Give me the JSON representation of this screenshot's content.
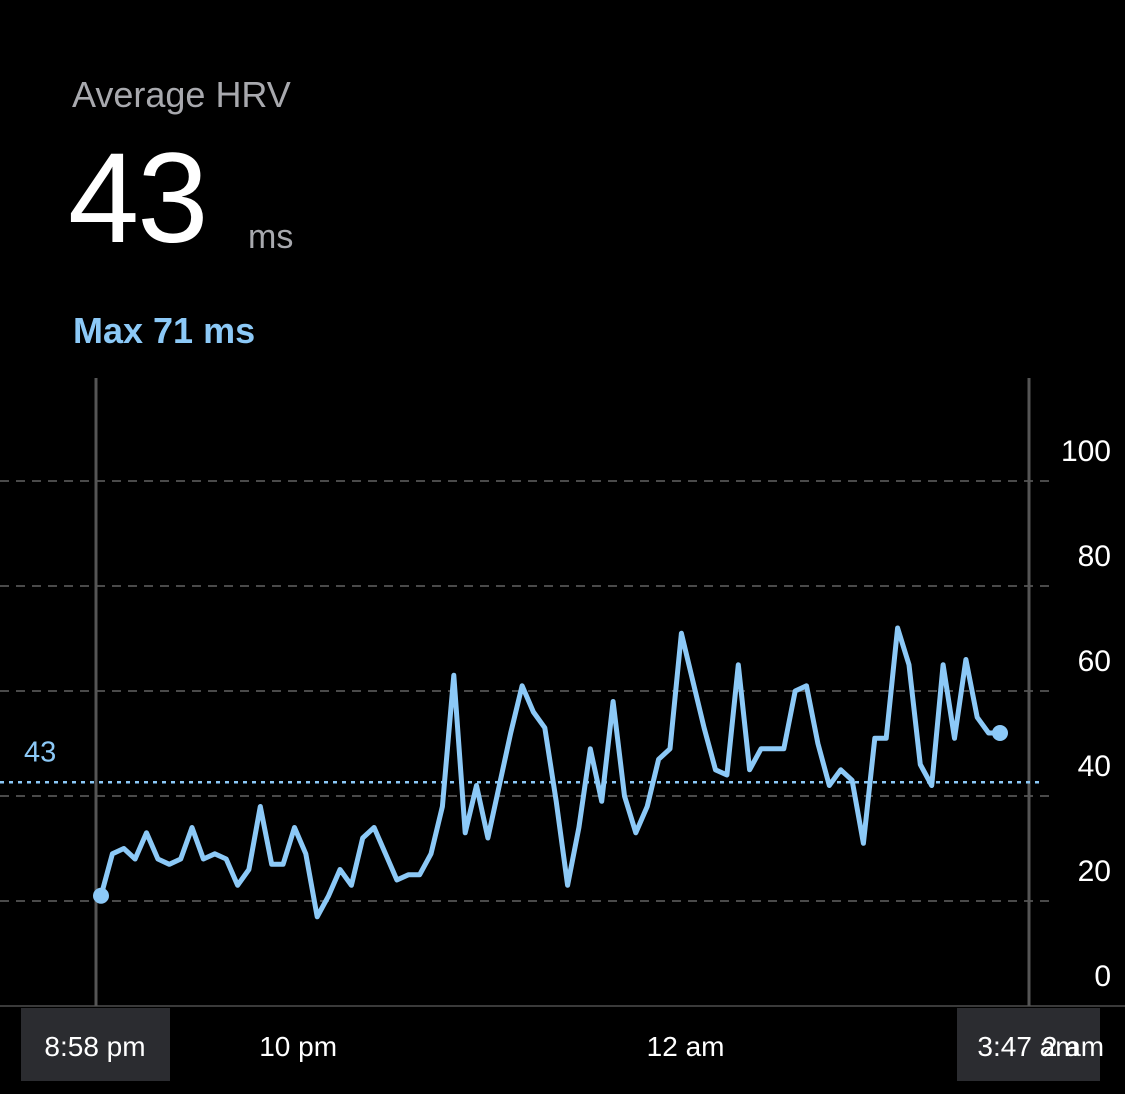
{
  "header": {
    "title": "Average HRV",
    "value": "43",
    "unit": "ms",
    "max_text": "Max 71 ms"
  },
  "colors": {
    "background": "#000000",
    "line": "#8cc9f7",
    "grid": "#4a4a4a",
    "label_box": "#2b2c30",
    "muted_text": "#a8a9ae"
  },
  "chart_data": {
    "type": "line",
    "title": "",
    "xlabel": "",
    "ylabel": "",
    "ylim": [
      0,
      100
    ],
    "yticks": [
      0,
      20,
      40,
      60,
      80,
      100
    ],
    "grid": true,
    "average": 43,
    "average_label": "43",
    "x_start_label": "8:58 pm",
    "x_end_label": "3:47 am",
    "x_ticks": [
      {
        "label": "10 pm",
        "minutes": 62
      },
      {
        "label": "12 am",
        "minutes": 182
      },
      {
        "label": "2 am",
        "minutes": 302
      }
    ],
    "x_range_minutes": [
      0,
      289
    ],
    "series": [
      {
        "values": [
          21,
          29,
          30,
          28,
          33,
          28,
          27,
          28,
          34,
          28,
          29,
          28,
          23,
          26,
          38,
          27,
          27,
          34,
          29,
          17,
          21,
          26,
          23,
          32,
          34,
          29,
          24,
          25,
          25,
          29,
          38,
          63,
          33,
          42,
          32,
          42,
          52,
          61,
          56,
          53,
          39,
          23,
          34,
          49,
          39,
          58,
          40,
          33,
          38,
          47,
          49,
          71,
          62,
          53,
          45,
          44,
          65,
          45,
          49,
          49,
          49,
          60,
          61,
          50,
          42,
          45,
          43,
          31,
          51,
          51,
          72,
          65,
          46,
          42,
          65,
          51,
          66,
          55,
          52,
          52
        ]
      }
    ]
  }
}
